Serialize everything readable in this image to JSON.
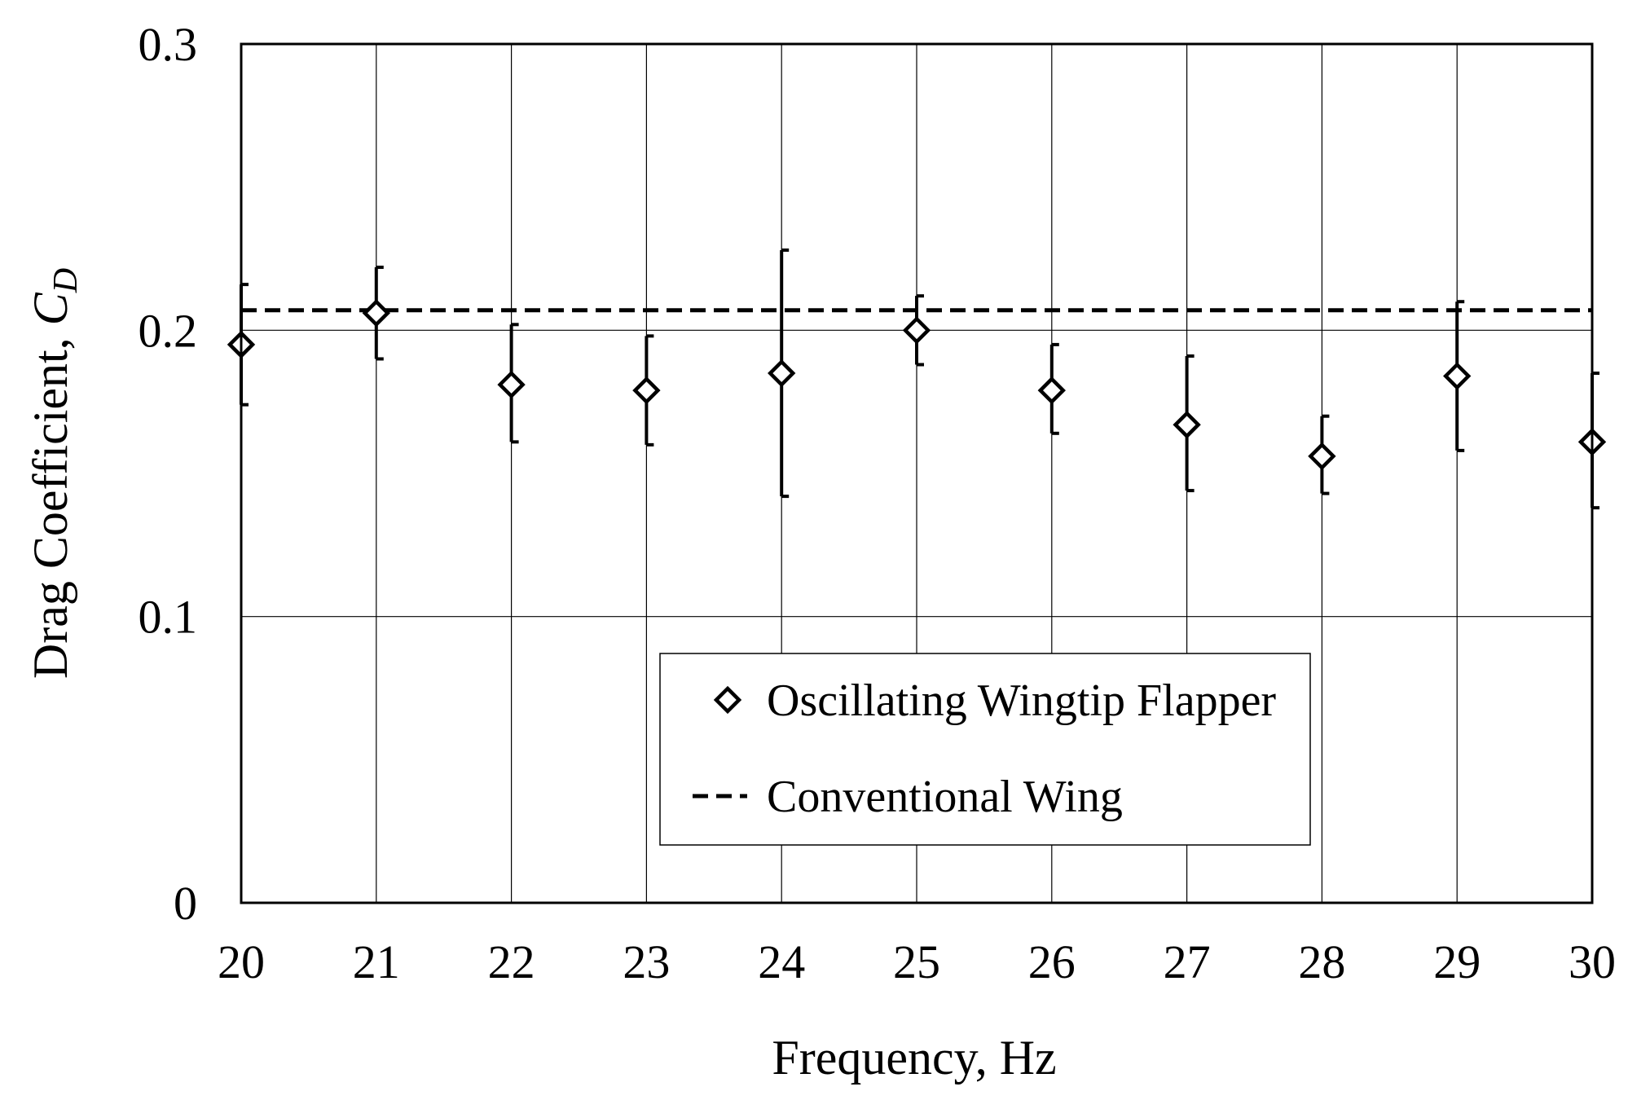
{
  "chart_data": {
    "type": "scatter",
    "title": "",
    "xlabel": "Frequency, Hz",
    "ylabel": {
      "prefix": "Drag Coefficient, ",
      "symbol": "C",
      "subscript": "D"
    },
    "x_ticks": [
      "20",
      "21",
      "22",
      "23",
      "24",
      "25",
      "26",
      "27",
      "28",
      "29",
      "30"
    ],
    "y_ticks": [
      "0",
      "0.1",
      "0.2",
      "0.3"
    ],
    "xlim": [
      20,
      30
    ],
    "ylim": [
      0,
      0.3
    ],
    "grid": true,
    "legend_position": "bottom-center",
    "series": [
      {
        "name": "Oscillating Wingtip Flapper",
        "marker": "diamond-open",
        "x": [
          20,
          21,
          22,
          23,
          24,
          25,
          26,
          27,
          28,
          29,
          30
        ],
        "y": [
          0.195,
          0.206,
          0.181,
          0.179,
          0.185,
          0.2,
          0.179,
          0.167,
          0.156,
          0.184,
          0.161
        ],
        "error_low": [
          0.174,
          0.19,
          0.161,
          0.16,
          0.142,
          0.188,
          0.164,
          0.144,
          0.143,
          0.158,
          0.138
        ],
        "error_high": [
          0.216,
          0.222,
          0.202,
          0.198,
          0.228,
          0.212,
          0.195,
          0.191,
          0.17,
          0.21,
          0.185
        ]
      },
      {
        "name": "Conventional Wing",
        "line_style": "dashed",
        "y": 0.207
      }
    ]
  }
}
